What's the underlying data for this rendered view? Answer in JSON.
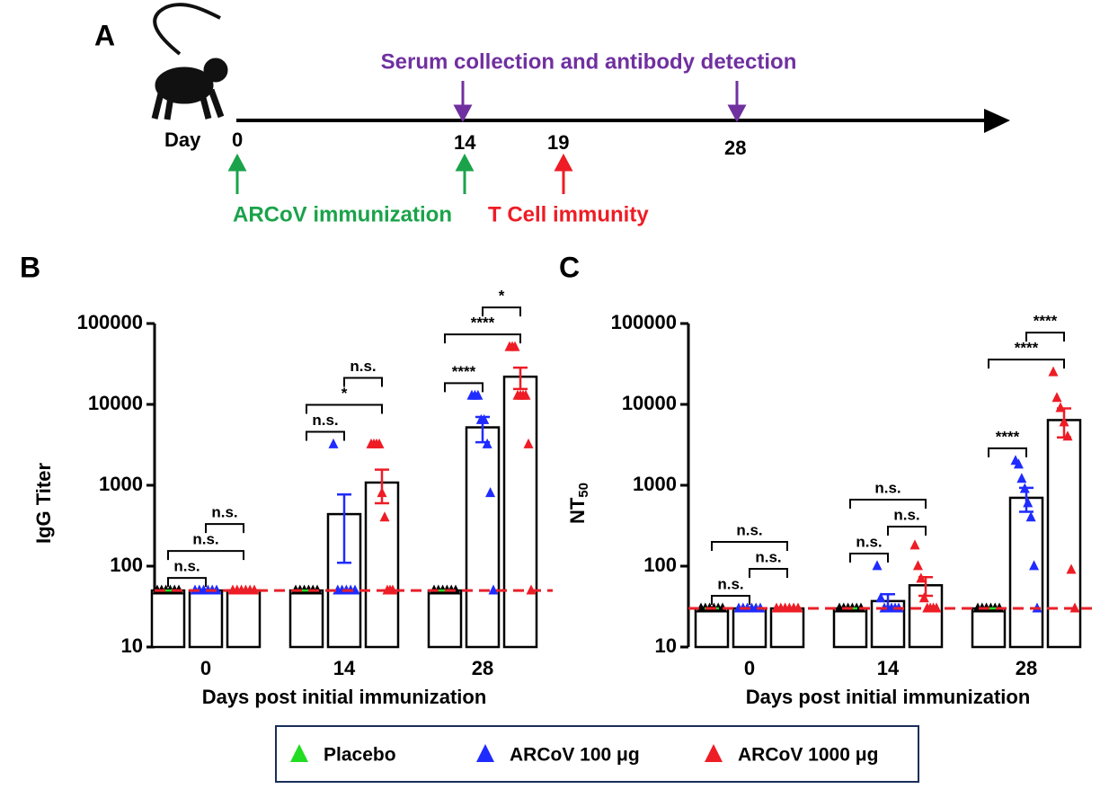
{
  "timeline": {
    "panel": "A",
    "day_label": "Day",
    "days": [
      "0",
      "14",
      "19",
      "28"
    ],
    "serum_label": "Serum collection and antibody detection",
    "immunization_label": "ARCoV immunization",
    "t_cell_label": "T Cell immunity"
  },
  "chart_data": [
    {
      "type": "bar",
      "panel": "B",
      "ylabel": "IgG  Titer",
      "xlabel": "Days post initial immunization",
      "categories": [
        "0",
        "14",
        "28"
      ],
      "log_scale": true,
      "ylim": [
        10,
        100000
      ],
      "yticks": [
        10,
        100,
        1000,
        10000,
        100000
      ],
      "reference_line": {
        "value": 50,
        "color": "#e8202a"
      },
      "series": [
        {
          "name": "Placebo",
          "color": "#22dd22",
          "point_color": "#000000",
          "values": [
            50,
            50,
            50
          ],
          "errors": [
            0,
            0,
            0
          ],
          "points": [
            [
              50,
              50,
              50,
              50,
              50,
              50
            ],
            [
              50,
              50,
              50,
              50,
              50,
              50
            ],
            [
              50,
              50,
              50,
              50,
              50,
              50
            ]
          ]
        },
        {
          "name": "ARCoV 100 μg",
          "color": "#1f2bff",
          "point_color": "#1f2bff",
          "values": [
            50,
            440,
            5200
          ],
          "errors": [
            0,
            330,
            1800
          ],
          "points": [
            [
              50,
              50,
              50,
              50,
              50,
              50
            ],
            [
              3200,
              50,
              50,
              50,
              50,
              50
            ],
            [
              12800,
              12800,
              12800,
              6400,
              6400,
              3200,
              800,
              50
            ]
          ]
        },
        {
          "name": "ARCoV 1000 μg",
          "color": "#ee1c25",
          "point_color": "#ee1c25",
          "values": [
            50,
            1080,
            22000
          ],
          "errors": [
            0,
            480,
            6500
          ],
          "points": [
            [
              50,
              50,
              50,
              50,
              50,
              50
            ],
            [
              3200,
              3200,
              3200,
              3200,
              800,
              400,
              50,
              50,
              50
            ],
            [
              51200,
              51200,
              51200,
              12800,
              12800,
              12800,
              12800,
              3200,
              50
            ]
          ]
        }
      ],
      "significance": [
        {
          "category": 0,
          "from": 0,
          "to": 1,
          "label": "n.s."
        },
        {
          "category": 0,
          "from": 0,
          "to": 2,
          "label": "n.s."
        },
        {
          "category": 0,
          "from": 1,
          "to": 2,
          "label": "n.s."
        },
        {
          "category": 1,
          "from": 0,
          "to": 1,
          "label": "n.s."
        },
        {
          "category": 1,
          "from": 0,
          "to": 2,
          "label": "*"
        },
        {
          "category": 1,
          "from": 1,
          "to": 2,
          "label": "n.s."
        },
        {
          "category": 2,
          "from": 0,
          "to": 1,
          "label": "****"
        },
        {
          "category": 2,
          "from": 0,
          "to": 2,
          "label": "****"
        },
        {
          "category": 2,
          "from": 1,
          "to": 2,
          "label": "*"
        }
      ]
    },
    {
      "type": "bar",
      "panel": "C",
      "ylabel": "NT",
      "ylabel_subscript": "50",
      "xlabel": "Days post initial immunization",
      "categories": [
        "0",
        "14",
        "28"
      ],
      "log_scale": true,
      "ylim": [
        10,
        100000
      ],
      "yticks": [
        10,
        100,
        1000,
        10000,
        100000
      ],
      "reference_line": {
        "value": 30,
        "color": "#e8202a"
      },
      "series": [
        {
          "name": "Placebo",
          "color": "#22dd22",
          "point_color": "#000000",
          "values": [
            30,
            30,
            30
          ],
          "errors": [
            0,
            0,
            0
          ],
          "points": [
            [
              30,
              30,
              30,
              30,
              30,
              30
            ],
            [
              30,
              30,
              30,
              30,
              30,
              30
            ],
            [
              30,
              30,
              30,
              30,
              30,
              30
            ]
          ]
        },
        {
          "name": "ARCoV 100 μg",
          "color": "#1f2bff",
          "point_color": "#1f2bff",
          "values": [
            30,
            37,
            700
          ],
          "errors": [
            0,
            8,
            230
          ],
          "points": [
            [
              30,
              30,
              30,
              30,
              30,
              30
            ],
            [
              100,
              40,
              30,
              30,
              30,
              30,
              30
            ],
            [
              2000,
              1800,
              1200,
              900,
              600,
              400,
              100,
              30
            ]
          ]
        },
        {
          "name": "ARCoV 1000 μg",
          "color": "#ee1c25",
          "point_color": "#ee1c25",
          "values": [
            30,
            58,
            6400
          ],
          "errors": [
            0,
            15,
            2500
          ],
          "points": [
            [
              30,
              30,
              30,
              30,
              30,
              30
            ],
            [
              180,
              100,
              70,
              40,
              30,
              30,
              30,
              30
            ],
            [
              25000,
              12000,
              9000,
              6000,
              4000,
              90,
              30
            ]
          ]
        }
      ],
      "significance": [
        {
          "category": 0,
          "from": 0,
          "to": 1,
          "label": "n.s."
        },
        {
          "category": 0,
          "from": 1,
          "to": 2,
          "label": "n.s."
        },
        {
          "category": 0,
          "from": 0,
          "to": 2,
          "label": "n.s."
        },
        {
          "category": 1,
          "from": 0,
          "to": 1,
          "label": "n.s."
        },
        {
          "category": 1,
          "from": 1,
          "to": 2,
          "label": "n.s."
        },
        {
          "category": 1,
          "from": 0,
          "to": 2,
          "label": "n.s."
        },
        {
          "category": 2,
          "from": 0,
          "to": 1,
          "label": "****"
        },
        {
          "category": 2,
          "from": 0,
          "to": 2,
          "label": "****"
        },
        {
          "category": 2,
          "from": 1,
          "to": 2,
          "label": "****"
        }
      ]
    }
  ]
}
